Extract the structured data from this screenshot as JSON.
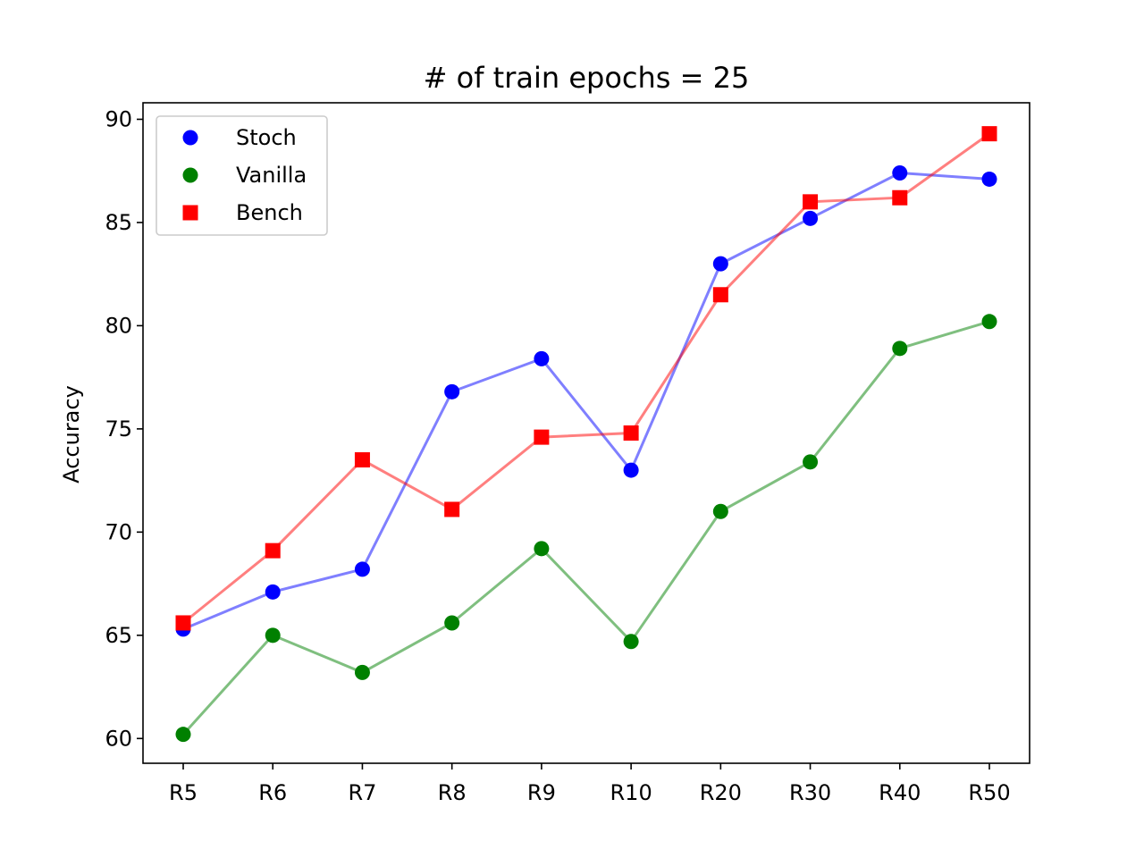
{
  "chart_data": {
    "type": "line",
    "title": "# of train epochs = 25",
    "xlabel": "",
    "ylabel": "Accuracy",
    "categories": [
      "R5",
      "R6",
      "R7",
      "R8",
      "R9",
      "R10",
      "R20",
      "R30",
      "R40",
      "R50"
    ],
    "ylim": [
      58.8,
      90.8
    ],
    "yticks": [
      60,
      65,
      70,
      75,
      80,
      85,
      90
    ],
    "grid": false,
    "legend_position": "upper-left",
    "series": [
      {
        "name": "Stoch",
        "marker": "circle",
        "color": "#0000ff",
        "values": [
          65.3,
          67.1,
          68.2,
          76.8,
          78.4,
          73.0,
          83.0,
          85.2,
          87.4,
          87.1
        ]
      },
      {
        "name": "Vanilla",
        "marker": "circle",
        "color": "#008000",
        "values": [
          60.2,
          65.0,
          63.2,
          65.6,
          69.2,
          64.7,
          71.0,
          73.4,
          78.9,
          80.2
        ]
      },
      {
        "name": "Bench",
        "marker": "square",
        "color": "#ff0000",
        "values": [
          65.6,
          69.1,
          73.5,
          71.1,
          74.6,
          74.8,
          81.5,
          86.0,
          86.2,
          89.3
        ]
      }
    ]
  }
}
